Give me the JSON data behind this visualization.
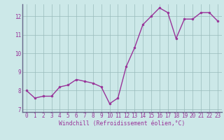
{
  "x": [
    0,
    1,
    2,
    3,
    4,
    5,
    6,
    7,
    8,
    9,
    10,
    11,
    12,
    13,
    14,
    15,
    16,
    17,
    18,
    19,
    20,
    21,
    22,
    23
  ],
  "y": [
    8.0,
    7.6,
    7.7,
    7.7,
    8.2,
    8.3,
    8.6,
    8.5,
    8.4,
    8.2,
    7.3,
    7.6,
    9.3,
    10.3,
    11.55,
    12.0,
    12.45,
    12.2,
    10.8,
    11.85,
    11.85,
    12.2,
    12.2,
    11.75
  ],
  "line_color": "#993399",
  "marker_color": "#993399",
  "bg_color": "#cce8e8",
  "plot_bg_color": "#cce8e8",
  "grid_color": "#99bbbb",
  "xlabel": "Windchill (Refroidissement éolien,°C)",
  "xlabel_color": "#993399",
  "tick_color": "#993399",
  "spine_color": "#666688",
  "ylim": [
    6.85,
    12.65
  ],
  "xlim": [
    -0.5,
    23.5
  ],
  "yticks": [
    7,
    8,
    9,
    10,
    11,
    12
  ],
  "xticks": [
    0,
    1,
    2,
    3,
    4,
    5,
    6,
    7,
    8,
    9,
    10,
    11,
    12,
    13,
    14,
    15,
    16,
    17,
    18,
    19,
    20,
    21,
    22,
    23
  ],
  "linewidth": 1.0,
  "markersize": 2.0,
  "tick_fontsize": 5.5,
  "xlabel_fontsize": 5.8
}
